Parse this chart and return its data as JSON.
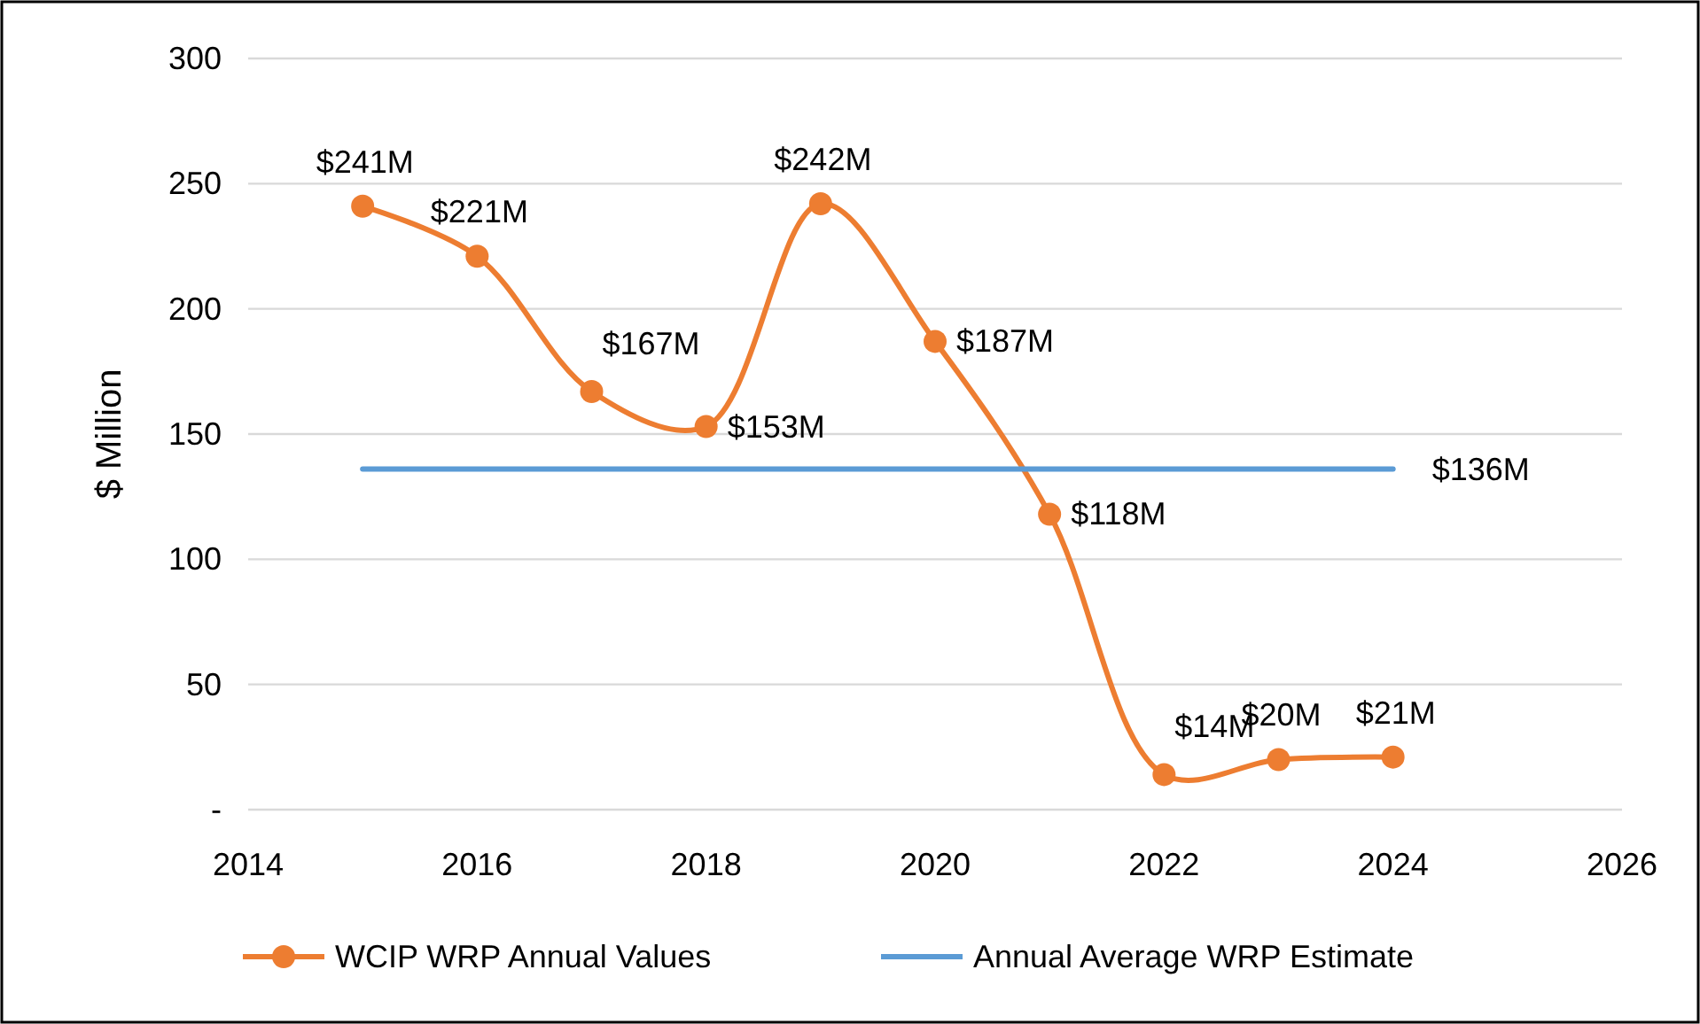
{
  "chart_data": {
    "type": "line",
    "ylabel": "$ Million",
    "xlim": [
      2014,
      2026
    ],
    "xticks": [
      2014,
      2016,
      2018,
      2020,
      2022,
      2024,
      2026
    ],
    "ylim": [
      0,
      300
    ],
    "yticks": [
      {
        "value": 0,
        "label": "-"
      },
      50,
      100,
      150,
      200,
      250,
      300
    ],
    "grid": "y",
    "legend": "bottom",
    "series": [
      {
        "name": "WCIP WRP Annual Values",
        "color": "#ed7d31",
        "marker": "circle",
        "x": [
          2015,
          2016,
          2017,
          2018,
          2019,
          2020,
          2021,
          2022,
          2023,
          2024
        ],
        "values": [
          241,
          221,
          167,
          153,
          242,
          187,
          118,
          14,
          20,
          21
        ],
        "value_labels": [
          "$241M",
          "$221M",
          "$167M",
          "$153M",
          "$242M",
          "$187M",
          "$118M",
          "$14M",
          "$20M",
          "$21M"
        ]
      },
      {
        "name": "Annual Average WRP Estimate",
        "color": "#5b9bd5",
        "marker": "none",
        "x": [
          2015,
          2024
        ],
        "values": [
          136,
          136
        ],
        "value_labels": [
          null,
          "$136M"
        ]
      }
    ]
  }
}
